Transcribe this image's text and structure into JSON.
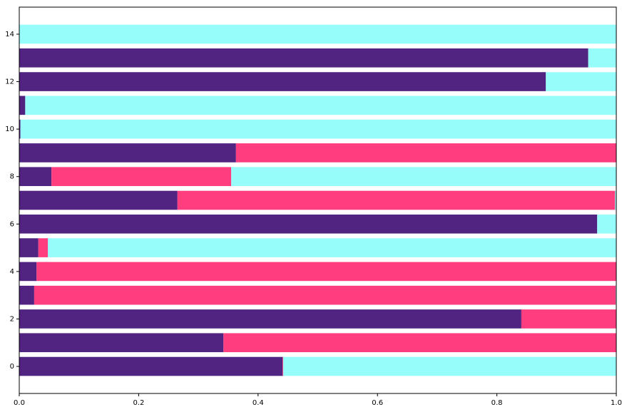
{
  "chart_data": {
    "type": "barh_stacked",
    "y": [
      0,
      1,
      2,
      3,
      4,
      5,
      6,
      7,
      8,
      9,
      10,
      11,
      12,
      13,
      14
    ],
    "series": [
      {
        "color": "#522481",
        "values": [
          0.441,
          0.342,
          0.841,
          0.025,
          0.029,
          0.032,
          0.968,
          0.265,
          0.054,
          0.363,
          0.002,
          0.01,
          0.882,
          0.953,
          0
        ]
      },
      {
        "color": "#ff3d7f",
        "values": [
          0.001,
          0.658,
          0.159,
          0.974,
          0.971,
          0.016,
          0,
          0.733,
          0.301,
          0.637,
          0,
          0,
          0,
          0,
          0
        ]
      },
      {
        "color": "#96fdfb",
        "values": [
          0.558,
          0,
          0,
          0.001,
          0,
          0.952,
          0.032,
          0.002,
          0.645,
          0,
          0.998,
          0.99,
          0.118,
          0.047,
          1
        ]
      }
    ],
    "xlim": [
      0,
      1
    ],
    "xticks": [
      {
        "value": 0,
        "label": "0.0"
      },
      0.2,
      0.4,
      0.6,
      0.8,
      {
        "value": 1,
        "label": "1.0"
      }
    ],
    "ylim": [
      -1.14,
      15.14
    ],
    "yticks": [
      0,
      2,
      4,
      6,
      8,
      10,
      12,
      14
    ]
  }
}
